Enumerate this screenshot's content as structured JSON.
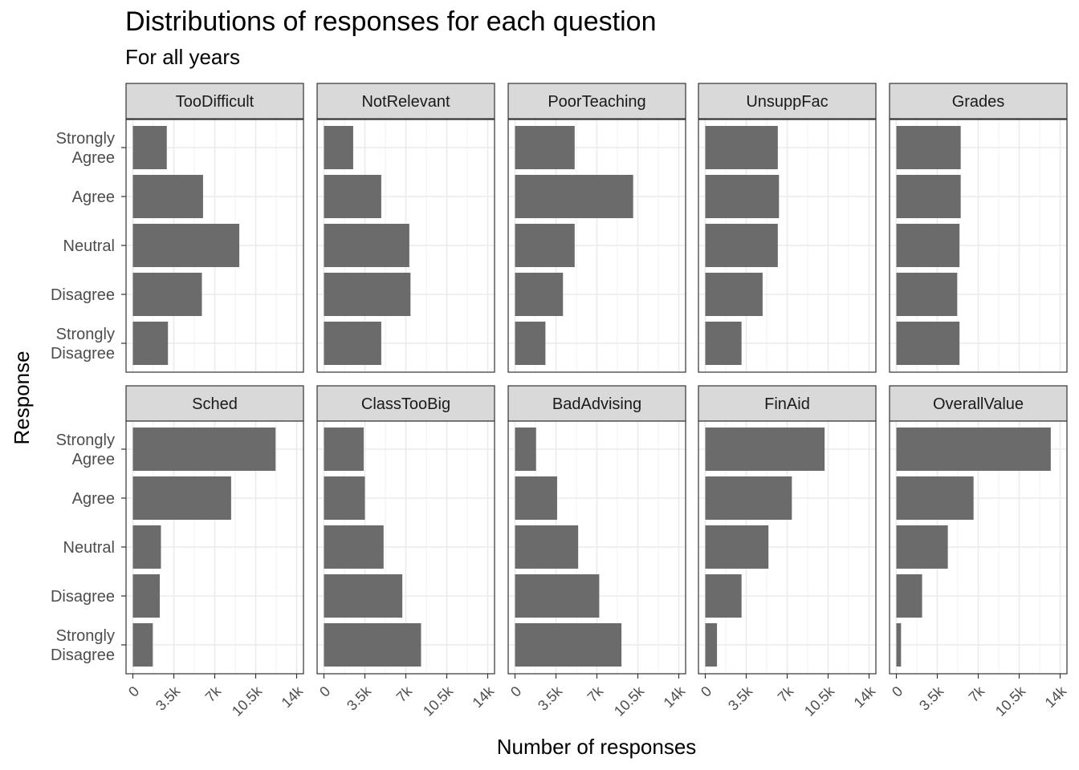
{
  "chart_data": {
    "type": "bar",
    "orientation": "horizontal",
    "layout": "faceted 2x5",
    "title": "Distributions of responses for each question",
    "subtitle": "For all years",
    "xlabel": "Number of responses",
    "ylabel": "Response",
    "categories": [
      "Strongly Agree",
      "Agree",
      "Neutral",
      "Disagree",
      "Strongly Disagree"
    ],
    "category_lines": [
      [
        "Strongly",
        "Agree"
      ],
      [
        "Agree"
      ],
      [
        "Neutral"
      ],
      [
        "Disagree"
      ],
      [
        "Strongly",
        "Disagree"
      ]
    ],
    "xlim": [
      0,
      14000
    ],
    "x_ticks": [
      0,
      3500,
      7000,
      10500,
      14000
    ],
    "x_tick_labels": [
      "0",
      "3.5k",
      "7k",
      "10.5k",
      "14k"
    ],
    "grid": true,
    "bar_color": "#6b6b6b",
    "strip_color": "#d9d9d9",
    "facets": [
      {
        "name": "TooDifficult",
        "values": [
          2900,
          6000,
          9100,
          5900,
          3000
        ]
      },
      {
        "name": "NotRelevant",
        "values": [
          2500,
          4900,
          7300,
          7400,
          4900
        ]
      },
      {
        "name": "PoorTeaching",
        "values": [
          5100,
          10100,
          5100,
          4100,
          2600
        ]
      },
      {
        "name": "UnsuppFac",
        "values": [
          6200,
          6300,
          6200,
          4900,
          3100
        ]
      },
      {
        "name": "Grades",
        "values": [
          5500,
          5500,
          5400,
          5200,
          5400
        ]
      },
      {
        "name": "Sched",
        "values": [
          12200,
          8400,
          2400,
          2300,
          1700
        ]
      },
      {
        "name": "ClassTooBig",
        "values": [
          3400,
          3500,
          5100,
          6700,
          8300
        ]
      },
      {
        "name": "BadAdvising",
        "values": [
          1800,
          3600,
          5400,
          7200,
          9100
        ]
      },
      {
        "name": "FinAid",
        "values": [
          10200,
          7400,
          5400,
          3100,
          1000
        ]
      },
      {
        "name": "OverallValue",
        "values": [
          13200,
          6600,
          4400,
          2200,
          400
        ]
      }
    ]
  }
}
